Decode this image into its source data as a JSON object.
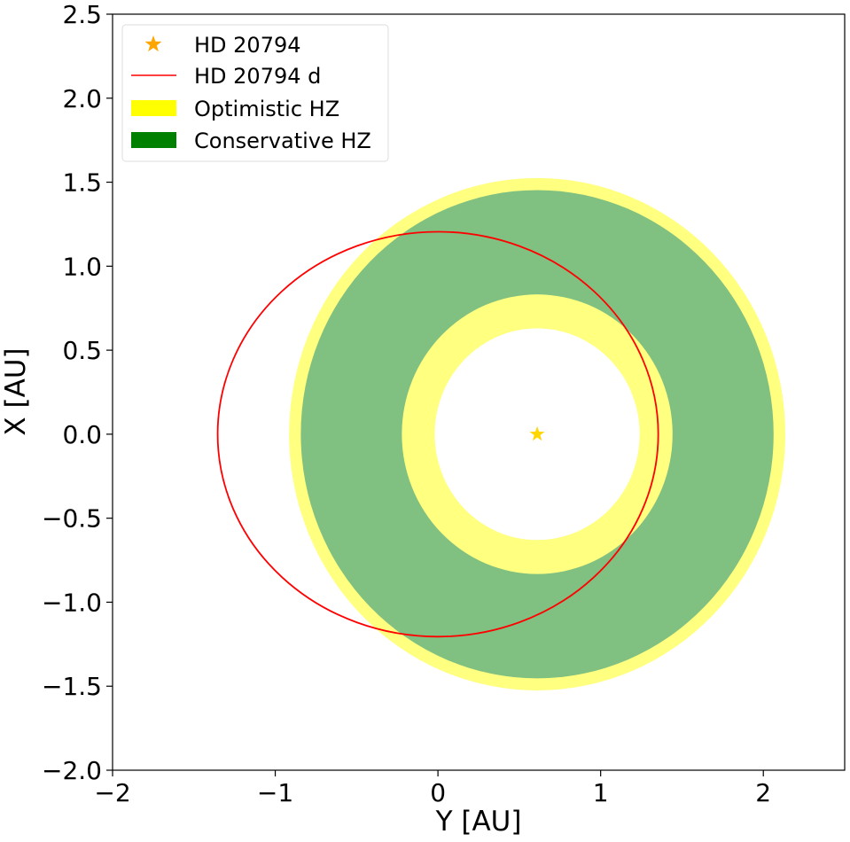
{
  "chart_data": {
    "type": "scatter",
    "title": "",
    "xlabel": "Y [AU]",
    "ylabel": "X [AU]",
    "xlim": [
      -2,
      2.5
    ],
    "ylim": [
      -2.0,
      2.5
    ],
    "xticks": [
      "−2",
      "−1",
      "0",
      "1",
      "2"
    ],
    "xtick_values": [
      -2,
      -1,
      0,
      1,
      2
    ],
    "yticks": [
      "−2.0",
      "−1.5",
      "−1.0",
      "−0.5",
      "0.0",
      "0.5",
      "1.0",
      "1.5",
      "2.0",
      "2.5"
    ],
    "ytick_values": [
      -2.0,
      -1.5,
      -1.0,
      -0.5,
      0.0,
      0.5,
      1.0,
      1.5,
      2.0,
      2.5
    ],
    "grid": false,
    "legend_placement": "upper-left",
    "star": {
      "name": "HD 20794",
      "x": 0.61,
      "y": 0.0,
      "color": "#FFD700",
      "legend_color": "#FFA500"
    },
    "orbit": {
      "name": "HD 20794 d",
      "center_x": 0.0,
      "center_y": 0.0,
      "semi_major_axis": 1.354,
      "semi_minor_axis": 1.205,
      "color": "#FF0000"
    },
    "optimistic_hz": {
      "name": "Optimistic HZ",
      "inner_radius": 0.63,
      "outer_radius": 1.525,
      "color": "#FFFF00",
      "alpha": 0.5
    },
    "conservative_hz": {
      "name": "Conservative HZ",
      "inner_radius": 0.832,
      "outer_radius": 1.453,
      "color": "#008000",
      "alpha": 0.5
    }
  }
}
